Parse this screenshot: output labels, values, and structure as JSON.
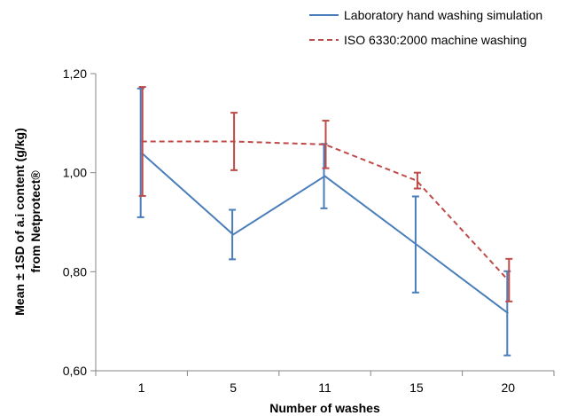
{
  "chart_data": {
    "type": "line",
    "title": "",
    "xlabel": "Number of washes",
    "ylabel": "Mean ± 1SD of a.i content (g/kg) from Netprotect®",
    "ylabel_lines": [
      "Mean ± 1SD of a.i content (g/kg)",
      "from Netprotect®"
    ],
    "categories": [
      "1",
      "5",
      "11",
      "15",
      "20"
    ],
    "ylim": [
      0.6,
      1.2
    ],
    "yticks": [
      0.6,
      0.8,
      1.0,
      1.2
    ],
    "ytick_labels": [
      "0,60",
      "0,80",
      "1,00",
      "1,20"
    ],
    "grid": false,
    "legend_position": "top-right",
    "series": [
      {
        "name": "Laboratory hand washing simulation",
        "color": "#4a7ebb",
        "dash": "solid",
        "values": [
          1.04,
          0.875,
          0.993,
          0.855,
          0.716
        ],
        "error": [
          0.13,
          0.05,
          0.065,
          0.097,
          0.085
        ]
      },
      {
        "name": "ISO 6330:2000 machine washing",
        "color": "#be4b48",
        "dash": "dashed",
        "values": [
          1.063,
          1.063,
          1.057,
          0.984,
          0.783
        ],
        "error": [
          0.11,
          0.058,
          0.048,
          0.016,
          0.043
        ]
      }
    ]
  }
}
